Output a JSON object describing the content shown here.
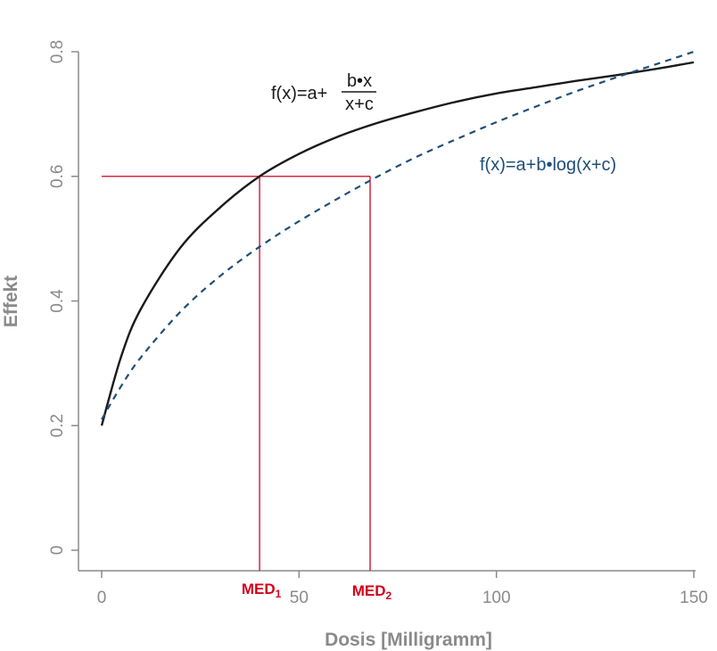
{
  "chart_data": {
    "type": "line",
    "xlabel": "Dosis [Milligramm]",
    "ylabel": "Effekt",
    "xlim": [
      0,
      150
    ],
    "ylim": [
      0,
      0.8
    ],
    "x_ticks": [
      0,
      50,
      100,
      150
    ],
    "y_ticks": [
      0,
      0.2,
      0.4,
      0.6,
      0.8
    ],
    "x_tick_labels": [
      "0",
      "50",
      "100",
      "150"
    ],
    "y_tick_labels": [
      "0",
      "0.2",
      "0.4",
      "0.6",
      "0.8"
    ],
    "grid": false,
    "series": [
      {
        "style": "solid",
        "color": "#1a1a1a",
        "x": [
          0,
          5,
          10,
          20,
          30,
          40,
          50,
          60,
          70,
          80,
          90,
          100,
          110,
          120,
          130,
          140,
          150
        ],
        "y": [
          0.2,
          0.312,
          0.388,
          0.486,
          0.55,
          0.6,
          0.636,
          0.664,
          0.686,
          0.704,
          0.72,
          0.733,
          0.743,
          0.753,
          0.762,
          0.772,
          0.783
        ]
      },
      {
        "style": "dashed",
        "color": "#1f4e79",
        "x": [
          0,
          5,
          10,
          20,
          30,
          40,
          50,
          60,
          70,
          80,
          90,
          100,
          110,
          120,
          130,
          140,
          150
        ],
        "y": [
          0.21,
          0.264,
          0.31,
          0.383,
          0.44,
          0.487,
          0.528,
          0.565,
          0.6,
          0.632,
          0.66,
          0.687,
          0.712,
          0.736,
          0.758,
          0.779,
          0.8
        ]
      }
    ],
    "annotations": {
      "target_effect": 0.6,
      "med1": {
        "label": "MED",
        "subscript": "1",
        "x": 40
      },
      "med2": {
        "label": "MED",
        "subscript": "2",
        "x": 68
      },
      "color": "#d0021b"
    },
    "equations": {
      "hyperbolic": {
        "lhs": "f(x)=a+",
        "numerator": "b•x",
        "denominator": "x+c",
        "color": "#1a1a1a"
      },
      "logarithmic": {
        "text": "f(x)=a+b•log(x+c)",
        "color": "#1f4e79"
      }
    }
  }
}
